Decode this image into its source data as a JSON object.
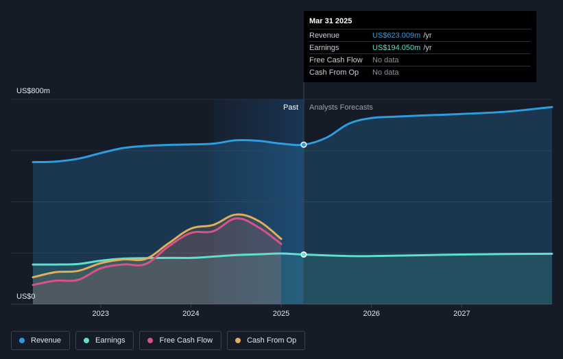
{
  "colors": {
    "revenue": "#2d9de0",
    "earnings": "#5fe0cf",
    "free_cash_flow": "#d9528a",
    "cash_from_op": "#e3ad5b",
    "background": "#151b27",
    "past_highlight": "#1b3a58"
  },
  "tooltip": {
    "date": "Mar 31 2025",
    "rows": [
      {
        "label": "Revenue",
        "value": "US$623.009m",
        "unit": "/yr"
      },
      {
        "label": "Earnings",
        "value": "US$194.050m",
        "unit": "/yr"
      },
      {
        "label": "Free Cash Flow",
        "value": "No data",
        "unit": ""
      },
      {
        "label": "Cash From Op",
        "value": "No data",
        "unit": ""
      }
    ]
  },
  "labels": {
    "past": "Past",
    "forecast": "Analysts Forecasts"
  },
  "legend": [
    {
      "label": "Revenue",
      "color": "#2d9de0"
    },
    {
      "label": "Earnings",
      "color": "#5fe0cf"
    },
    {
      "label": "Free Cash Flow",
      "color": "#d9528a"
    },
    {
      "label": "Cash From Op",
      "color": "#e3ad5b"
    }
  ],
  "chart_data": {
    "type": "line",
    "ylabel_top": "US$800m",
    "ylabel_bottom": "US$0",
    "ylim": [
      0,
      800
    ],
    "xlim": [
      2022.25,
      2028.0
    ],
    "x_ticks": [
      2023,
      2024,
      2025,
      2026,
      2027
    ],
    "x_tick_labels": [
      "2023",
      "2024",
      "2025",
      "2026",
      "2027"
    ],
    "grid": true,
    "past_forecast_boundary": 2025.25,
    "highlight_range": [
      2024.25,
      2025.25
    ],
    "series": [
      {
        "name": "Revenue",
        "x": [
          2022.25,
          2022.5,
          2022.75,
          2023.0,
          2023.25,
          2023.5,
          2023.75,
          2024.0,
          2024.25,
          2024.5,
          2024.75,
          2025.0,
          2025.25,
          2025.5,
          2025.75,
          2026.0,
          2026.25,
          2026.5,
          2027.0,
          2027.5,
          2028.0
        ],
        "y": [
          555,
          557,
          568,
          590,
          610,
          618,
          622,
          624,
          627,
          640,
          638,
          627,
          623,
          650,
          705,
          727,
          732,
          736,
          743,
          752,
          770
        ]
      },
      {
        "name": "Earnings",
        "x": [
          2022.25,
          2022.5,
          2022.75,
          2023.0,
          2023.25,
          2023.5,
          2023.75,
          2024.0,
          2024.25,
          2024.5,
          2024.75,
          2025.0,
          2025.25,
          2025.75,
          2026.0,
          2026.5,
          2027.0,
          2027.5,
          2028.0
        ],
        "y": [
          155,
          155,
          157,
          170,
          178,
          180,
          181,
          181,
          186,
          192,
          195,
          198,
          194,
          188,
          188,
          191,
          194,
          196,
          197
        ]
      },
      {
        "name": "Free Cash Flow",
        "x": [
          2022.25,
          2022.5,
          2022.75,
          2023.0,
          2023.25,
          2023.5,
          2023.75,
          2024.0,
          2024.25,
          2024.5,
          2024.75,
          2025.0
        ],
        "y": [
          75,
          92,
          95,
          140,
          155,
          157,
          225,
          278,
          285,
          335,
          300,
          235
        ]
      },
      {
        "name": "Cash From Op",
        "x": [
          2022.25,
          2022.5,
          2022.75,
          2023.0,
          2023.25,
          2023.5,
          2023.75,
          2024.0,
          2024.25,
          2024.5,
          2024.75,
          2025.0
        ],
        "y": [
          105,
          125,
          130,
          160,
          175,
          177,
          237,
          295,
          310,
          350,
          325,
          255
        ]
      }
    ]
  }
}
